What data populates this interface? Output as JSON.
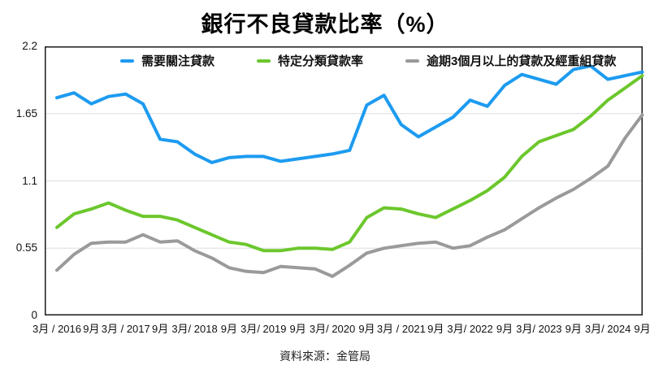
{
  "title": "銀行不良貸款比率（%）",
  "source": "資料來源：金管局",
  "colors": {
    "special_mention": "#1d9bf0",
    "classified": "#6cc72c",
    "overdue": "#9a9a9a",
    "gridline": "#dddddd",
    "axis_border": "#1a1a1a",
    "text": "#111111"
  },
  "legend": {
    "items": [
      {
        "label": "需要關注貸款",
        "color": "#1d9bf0"
      },
      {
        "label": "特定分類貸款率",
        "color": "#6cc72c"
      },
      {
        "label": "逾期3個月以上的貸款及經重組貸款",
        "color": "#9a9a9a"
      }
    ]
  },
  "chart_data": {
    "type": "line",
    "title": "銀行不良貸款比率（%）",
    "xlabel": "",
    "ylabel": "",
    "ylim": [
      0,
      2.2
    ],
    "yticks": [
      0,
      0.55,
      1.1,
      1.65,
      2.2
    ],
    "ytick_labels": [
      "0",
      "0.55",
      "1.1",
      "1.65",
      "2.2"
    ],
    "grid": "horizontal",
    "legend_position": "top",
    "x": [
      "3/2016",
      "6/2016",
      "9/2016",
      "12/2016",
      "3/2017",
      "6/2017",
      "9/2017",
      "12/2017",
      "3/2018",
      "6/2018",
      "9/2018",
      "12/2018",
      "3/2019",
      "6/2019",
      "9/2019",
      "12/2019",
      "3/2020",
      "6/2020",
      "9/2020",
      "12/2020",
      "3/2021",
      "6/2021",
      "9/2021",
      "12/2021",
      "3/2022",
      "6/2022",
      "9/2022",
      "12/2022",
      "3/2023",
      "6/2023",
      "9/2023",
      "12/2023",
      "3/2024",
      "6/2024",
      "9/2024"
    ],
    "x_axis_labels": [
      "3月 / 2016",
      "9月",
      "3月 / 2017",
      "9月",
      "3月/ 2018",
      "9月",
      "3月/ 2019",
      "9月",
      "3月/ 2020",
      "9月",
      "3月 / 2021",
      "9月",
      "3月/ 2022",
      "9月",
      "3月/ 2023",
      "9月",
      "3月/ 2024",
      "9月"
    ],
    "x_axis_label_every_n_points": 2,
    "series": [
      {
        "name": "需要關注貸款",
        "color": "#1d9bf0",
        "values": [
          1.78,
          1.82,
          1.73,
          1.79,
          1.81,
          1.73,
          1.44,
          1.42,
          1.32,
          1.25,
          1.29,
          1.3,
          1.3,
          1.26,
          1.28,
          1.3,
          1.32,
          1.35,
          1.72,
          1.8,
          1.56,
          1.46,
          1.54,
          1.62,
          1.76,
          1.71,
          1.88,
          1.97,
          1.93,
          1.89,
          2.01,
          2.04,
          1.93,
          1.96,
          1.99
        ]
      },
      {
        "name": "特定分類貸款率",
        "color": "#6cc72c",
        "values": [
          0.72,
          0.83,
          0.87,
          0.92,
          0.86,
          0.81,
          0.81,
          0.78,
          0.72,
          0.66,
          0.6,
          0.58,
          0.53,
          0.53,
          0.55,
          0.55,
          0.54,
          0.6,
          0.8,
          0.88,
          0.87,
          0.83,
          0.8,
          0.87,
          0.94,
          1.02,
          1.13,
          1.3,
          1.42,
          1.47,
          1.52,
          1.63,
          1.76,
          1.86,
          1.96
        ]
      },
      {
        "name": "逾期3個月以上的貸款及經重組貸款",
        "color": "#9a9a9a",
        "values": [
          0.37,
          0.5,
          0.59,
          0.6,
          0.6,
          0.66,
          0.6,
          0.61,
          0.53,
          0.47,
          0.39,
          0.36,
          0.35,
          0.4,
          0.39,
          0.38,
          0.32,
          0.41,
          0.51,
          0.55,
          0.57,
          0.59,
          0.6,
          0.55,
          0.57,
          0.64,
          0.7,
          0.79,
          0.88,
          0.96,
          1.03,
          1.12,
          1.22,
          1.45,
          1.64
        ]
      }
    ]
  }
}
